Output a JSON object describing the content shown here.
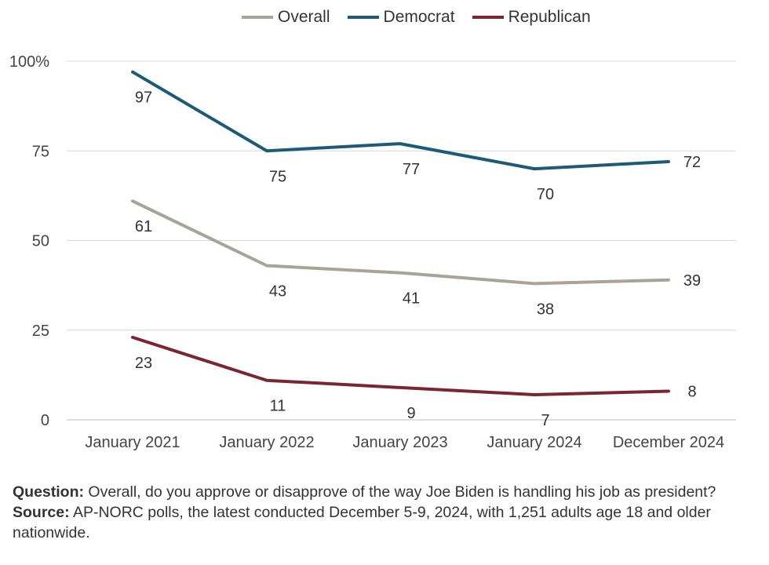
{
  "chart_data": {
    "type": "line",
    "categories": [
      "January 2021",
      "January 2022",
      "January 2023",
      "January 2024",
      "December 2024"
    ],
    "series": [
      {
        "name": "Overall",
        "color": "#a8a398",
        "values": [
          61,
          43,
          41,
          38,
          39
        ]
      },
      {
        "name": "Democrat",
        "color": "#1c5a78",
        "values": [
          97,
          75,
          77,
          70,
          72
        ]
      },
      {
        "name": "Republican",
        "color": "#7b2530",
        "values": [
          23,
          11,
          9,
          7,
          8
        ]
      }
    ],
    "ylim": [
      0,
      100
    ],
    "yticks": [
      0,
      25,
      50,
      75,
      100
    ],
    "ytick_labels": [
      "0",
      "25",
      "50",
      "75",
      "100%"
    ],
    "grid": true,
    "legend_position": "top-center",
    "data_labels": true
  },
  "notes": {
    "question_label": "Question:",
    "question_text": " Overall, do you approve or disapprove of the way Joe Biden is handling his job as president?",
    "source_label": "Source:",
    "source_text": " AP-NORC polls, the latest conducted December 5-9, 2024, with 1,251 adults age 18 and older nationwide."
  }
}
